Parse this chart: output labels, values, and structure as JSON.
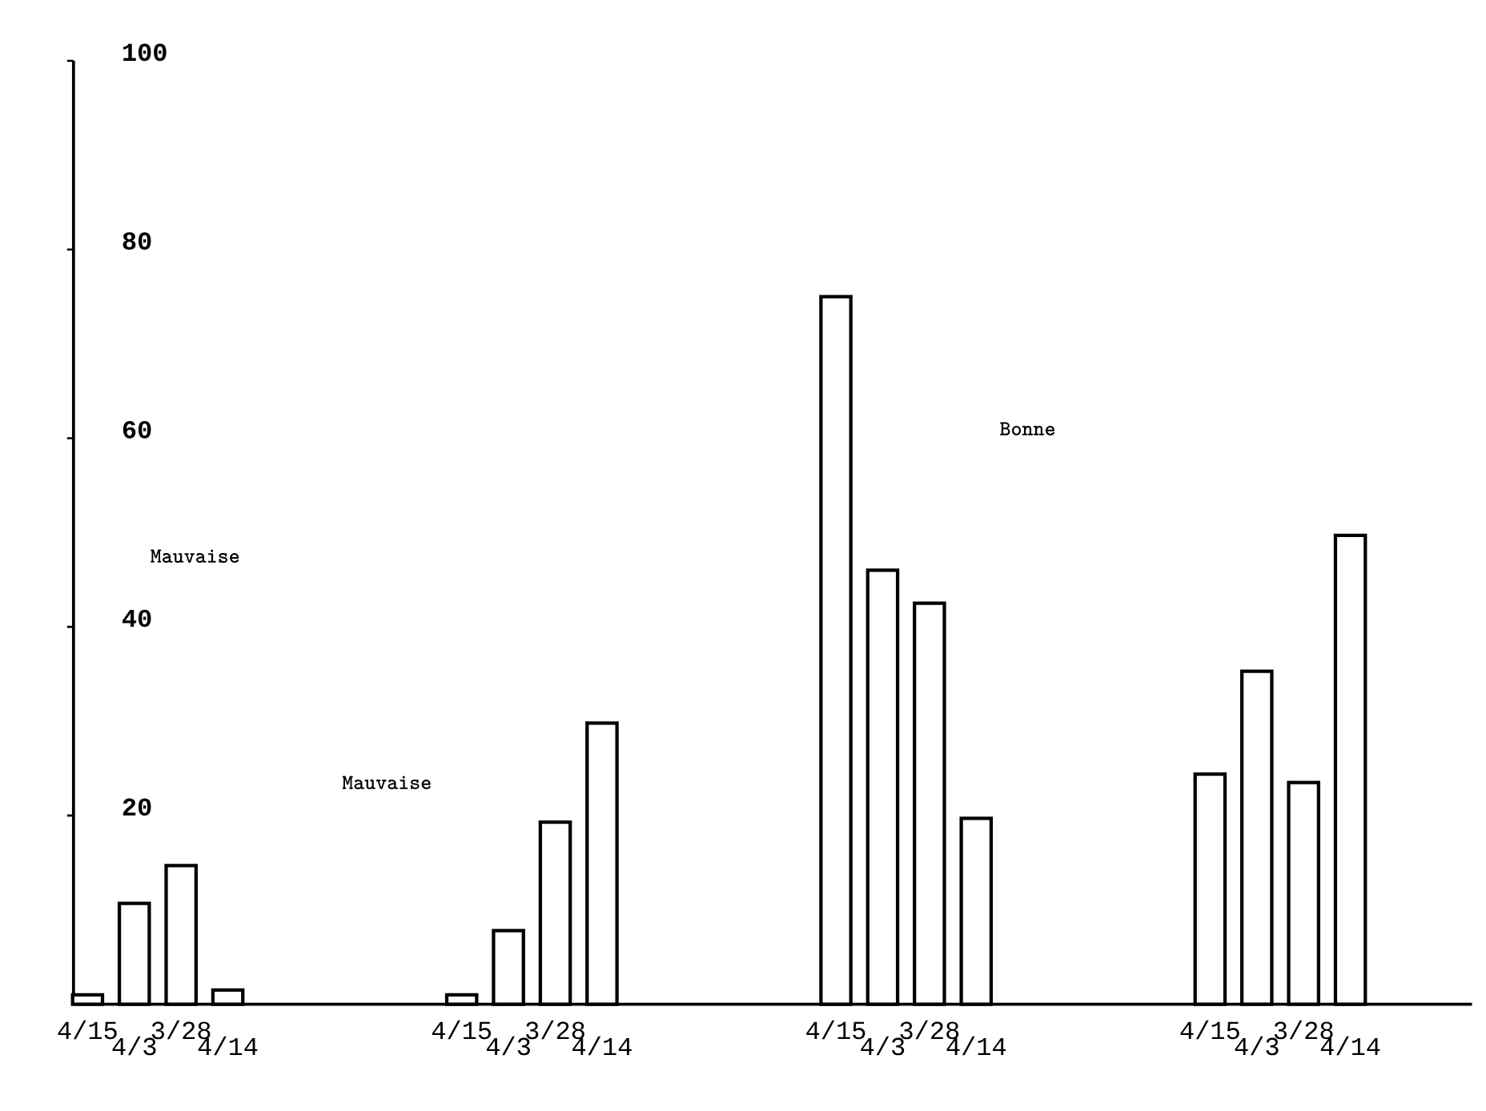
{
  "chart_data": {
    "type": "bar",
    "categories": [
      "4/15",
      "4/3",
      "3/28",
      "4/14",
      null,
      null,
      null,
      null,
      "4/15",
      "4/3",
      "3/28",
      "4/14",
      null,
      null,
      null,
      null,
      "4/15",
      "4/3",
      "3/28",
      "4/14",
      null,
      null,
      null,
      null,
      "4/15",
      "4/3",
      "3/28",
      "4/14"
    ],
    "values": [
      1,
      10.7,
      14.7,
      1.5,
      null,
      null,
      null,
      null,
      1,
      7.8,
      19.3,
      29.8,
      null,
      null,
      null,
      null,
      75,
      46,
      42.5,
      19.7,
      null,
      null,
      null,
      null,
      24.4,
      35.3,
      23.5,
      49.7
    ],
    "color": "#ffffff",
    "ylim": [
      0,
      100
    ],
    "yticks": [
      20,
      40,
      60,
      80,
      100
    ],
    "annotations": [
      "Mauvaise",
      "Mauvaise",
      "Bonne"
    ]
  }
}
